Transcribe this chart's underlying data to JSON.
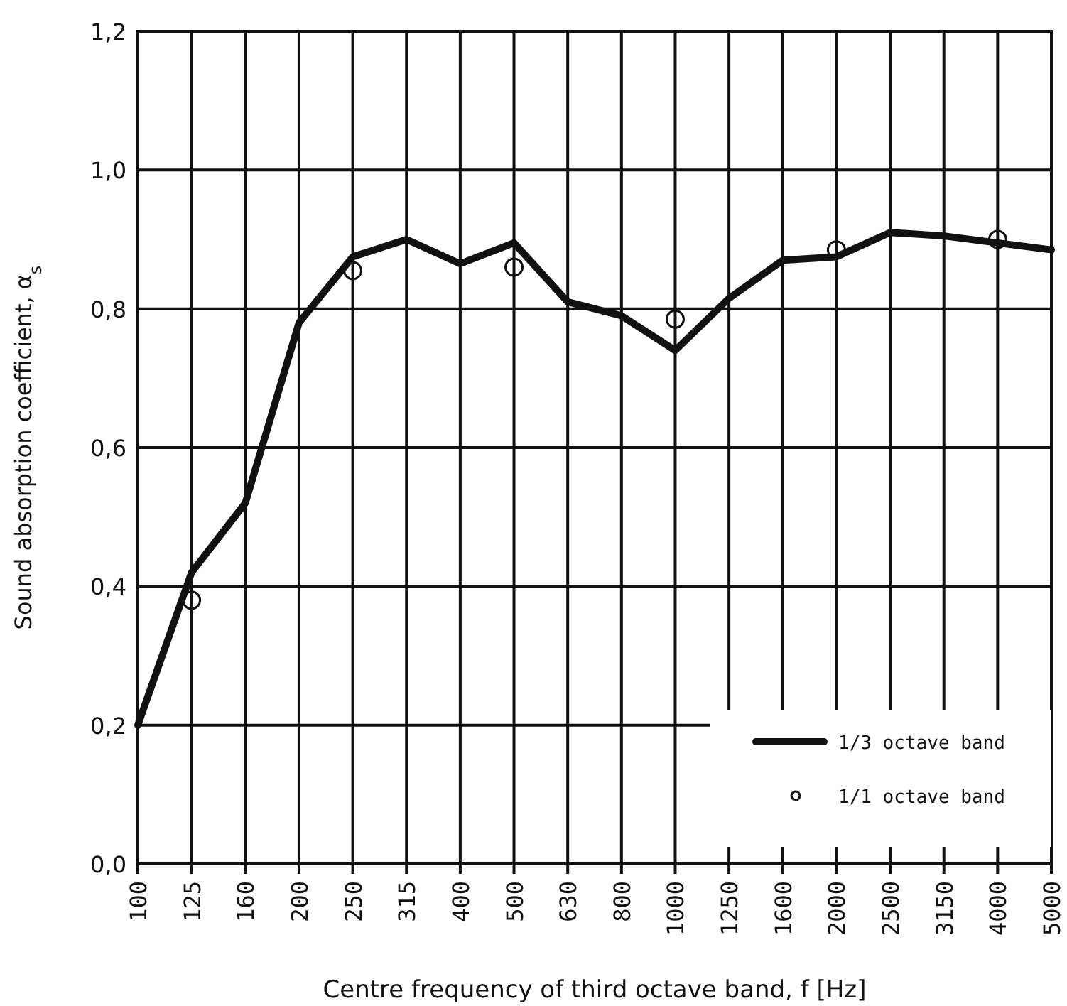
{
  "chart_data": {
    "type": "line",
    "xlabel": "Centre frequency of third octave band, f   [Hz]",
    "ylabel": "Sound absorption coefficient, α$_{s}$",
    "categories": [
      "100",
      "125",
      "160",
      "200",
      "250",
      "315",
      "400",
      "500",
      "630",
      "800",
      "1000",
      "1250",
      "1600",
      "2000",
      "2500",
      "3150",
      "4000",
      "5000"
    ],
    "series": [
      {
        "name": "1/3 octave band",
        "color": "#111111",
        "values": [
          0.2,
          0.42,
          0.52,
          0.78,
          0.875,
          0.9,
          0.865,
          0.895,
          0.81,
          0.79,
          0.74,
          0.815,
          0.87,
          0.875,
          0.91,
          0.905,
          0.895,
          0.885
        ],
        "marker": "none"
      },
      {
        "name": "1/1 octave band",
        "type": "scatter",
        "color": "#111111",
        "marker": "circle",
        "values": [
          null,
          0.38,
          null,
          null,
          0.855,
          null,
          null,
          0.86,
          null,
          null,
          0.785,
          null,
          null,
          0.885,
          null,
          null,
          0.9,
          null
        ]
      }
    ],
    "ylim": [
      0,
      1.2
    ],
    "yticks": [
      {
        "value": 0,
        "label": "0,0"
      },
      {
        "value": 0.2,
        "label": "0,2"
      },
      {
        "value": 0.4,
        "label": "0,4"
      },
      {
        "value": 0.6,
        "label": "0,6"
      },
      {
        "value": 0.8,
        "label": "0,8"
      },
      {
        "value": 1,
        "label": "1,0"
      },
      {
        "value": 1.2,
        "label": "1,2"
      }
    ],
    "grid": true,
    "legend": "bottom right"
  }
}
